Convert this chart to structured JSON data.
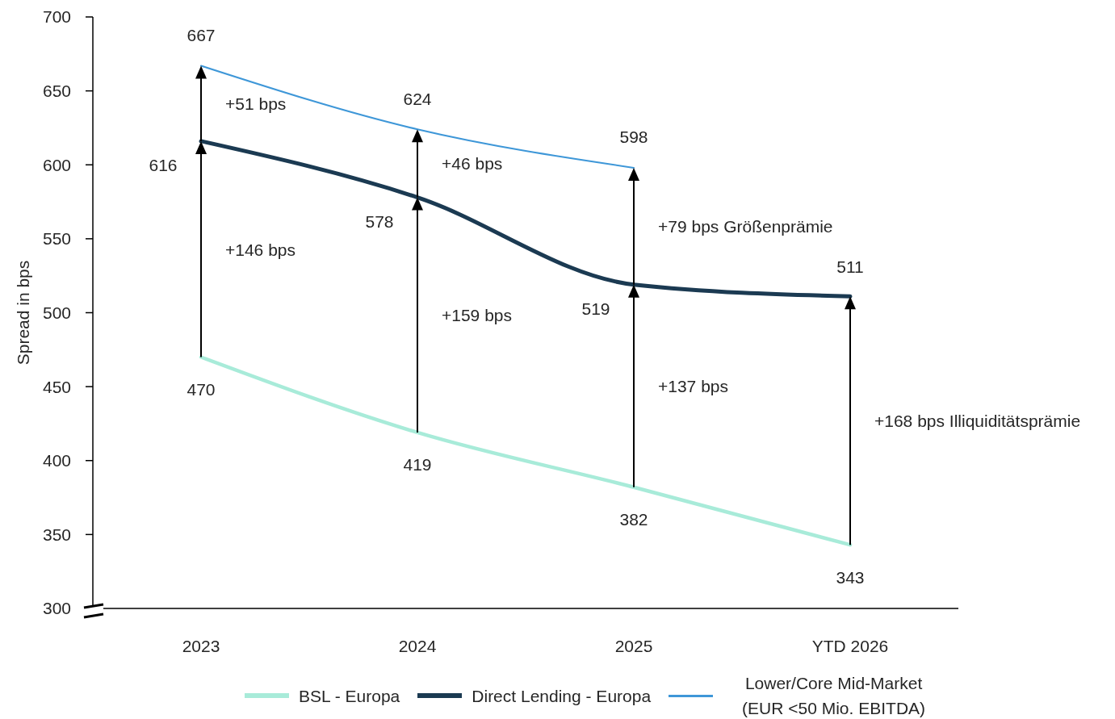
{
  "chart_data": {
    "type": "line",
    "ylabel": "Spread in bps",
    "categories": [
      "2023",
      "2024",
      "2025",
      "YTD 2026"
    ],
    "series": [
      {
        "name": "BSL - Europa",
        "color": "#a8ebd9",
        "values": [
          470,
          419,
          382,
          343
        ]
      },
      {
        "name": "Direct Lending - Europa",
        "color": "#1b3a52",
        "values": [
          616,
          578,
          519,
          511
        ]
      },
      {
        "name": "Lower/Core Mid-Market (EUR <50 Mio. EBITDA)",
        "color": "#3e97d8",
        "values": [
          667,
          624,
          598,
          null
        ]
      }
    ],
    "ylim": [
      300,
      700
    ],
    "yticks": [
      300,
      350,
      400,
      450,
      500,
      550,
      600,
      650,
      700
    ],
    "data_labels": true,
    "legend": "bottom",
    "marker": "none",
    "line_style": "solid",
    "annotations": [
      "+51 bps",
      "+146 bps",
      "+46 bps",
      "+159 bps",
      "+79 bps Größenprämie",
      "+137 bps",
      "+168 bps Illiquiditätsprämie"
    ]
  }
}
